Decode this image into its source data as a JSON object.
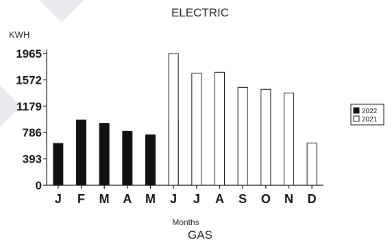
{
  "chart_data": {
    "type": "bar",
    "title": "ELECTRIC",
    "subtitle": "GAS",
    "ylabel": "KWH",
    "xlabel": "Months",
    "categories": [
      "J",
      "F",
      "M",
      "A",
      "M",
      "J",
      "J",
      "A",
      "S",
      "O",
      "N",
      "D"
    ],
    "yticks": [
      "0",
      "393",
      "786",
      "1179",
      "1572",
      "1965"
    ],
    "ylim": [
      0,
      1965
    ],
    "grid": false,
    "legend_position": "right",
    "series": [
      {
        "name": "2022",
        "color": "#111111",
        "values": [
          625,
          972,
          925,
          805,
          752,
          980,
          null,
          null,
          null,
          null,
          null,
          null
        ]
      },
      {
        "name": "2021",
        "color": "#ffffff",
        "values": [
          null,
          null,
          null,
          null,
          null,
          1965,
          1670,
          1685,
          1460,
          1430,
          1375,
          630
        ]
      }
    ]
  }
}
